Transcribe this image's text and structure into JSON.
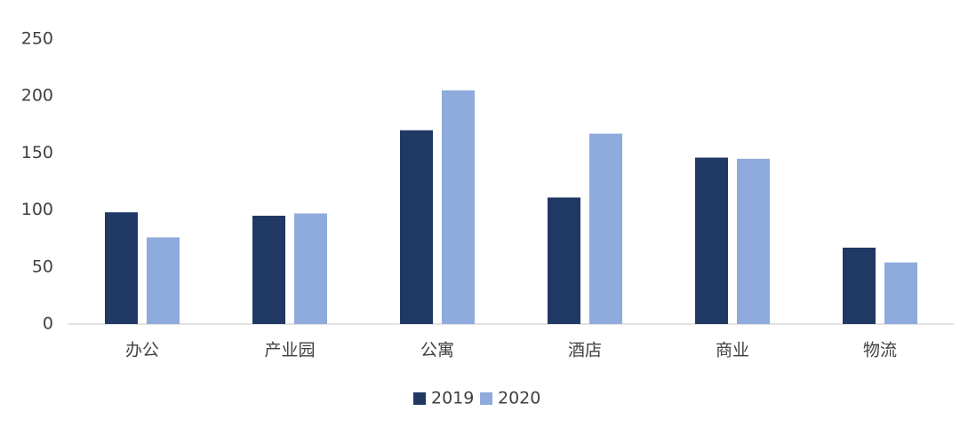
{
  "chart_data": {
    "type": "bar",
    "categories": [
      "办公",
      "产业园",
      "公寓",
      "酒店",
      "商业",
      "物流"
    ],
    "series": [
      {
        "name": "2019",
        "color": "#203864",
        "values": [
          98,
          95,
          170,
          111,
          146,
          67
        ]
      },
      {
        "name": "2020",
        "color": "#8faadc",
        "values": [
          76,
          97,
          205,
          167,
          145,
          54
        ]
      }
    ],
    "ylim": [
      0,
      250
    ],
    "yticks": [
      0,
      50,
      100,
      150,
      200,
      250
    ],
    "grid": false,
    "legend": "bottom"
  }
}
